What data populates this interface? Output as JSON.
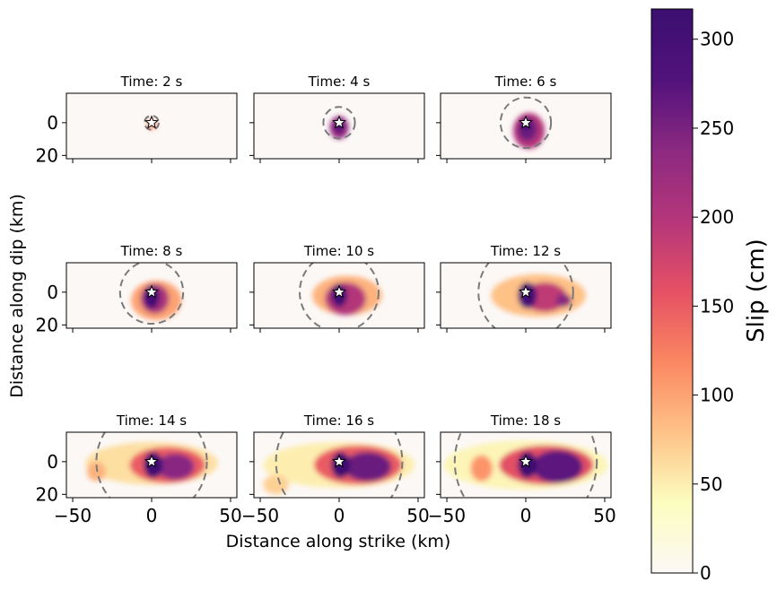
{
  "chart_data": {
    "type": "heatmap",
    "xlabel": "Distance along strike (km)",
    "ylabel": "Distance along dip (km)",
    "x_ticks": [
      -50,
      0,
      50
    ],
    "x_tick_labels": [
      "−50",
      "0",
      "50"
    ],
    "y_ticks": [
      0,
      20
    ],
    "y_tick_labels": [
      "0",
      "20"
    ],
    "xlim": [
      -54,
      54
    ],
    "ylim": [
      22,
      -18
    ],
    "hypocenter": {
      "x": 0,
      "y": 0
    },
    "colorbar": {
      "label": "Slip (cm)",
      "ticks": [
        0,
        50,
        100,
        150,
        200,
        250,
        300
      ],
      "range": [
        0,
        317
      ],
      "colormap": "magma_r",
      "stops": [
        "#fcf8f6",
        "#fcfdbf",
        "#fec287",
        "#fb8761",
        "#e55064",
        "#b5367a",
        "#8c2981",
        "#51127c",
        "#3b0f70"
      ]
    },
    "panels": [
      {
        "title": "Time: 2 s",
        "time_s": 2,
        "rupture_radius_km": 4.5
      },
      {
        "title": "Time: 4 s",
        "time_s": 4,
        "rupture_radius_km": 10
      },
      {
        "title": "Time: 6 s",
        "time_s": 6,
        "rupture_radius_km": 16
      },
      {
        "title": "Time: 8 s",
        "time_s": 8,
        "rupture_radius_km": 20
      },
      {
        "title": "Time: 10 s",
        "time_s": 10,
        "rupture_radius_km": 25
      },
      {
        "title": "Time: 12 s",
        "time_s": 12,
        "rupture_radius_km": 30
      },
      {
        "title": "Time: 14 s",
        "time_s": 14,
        "rupture_radius_km": 35
      },
      {
        "title": "Time: 16 s",
        "time_s": 16,
        "rupture_radius_km": 40
      },
      {
        "title": "Time: 18 s",
        "time_s": 18,
        "rupture_radius_km": 45
      }
    ],
    "slip_patches": [
      [
        {
          "x": 0,
          "y": 1,
          "rx": 3,
          "ry": 3,
          "slip": 120
        }
      ],
      [
        {
          "x": 0,
          "y": 3,
          "rx": 6,
          "ry": 7,
          "slip": 230
        },
        {
          "x": 0,
          "y": 2,
          "rx": 3,
          "ry": 4,
          "slip": 300
        }
      ],
      [
        {
          "x": 2,
          "y": 5,
          "rx": 10,
          "ry": 11,
          "slip": 200
        },
        {
          "x": 1,
          "y": 4,
          "rx": 6,
          "ry": 7,
          "slip": 260
        },
        {
          "x": 0,
          "y": 1,
          "rx": 3,
          "ry": 4,
          "slip": 310
        }
      ],
      [
        {
          "x": 3,
          "y": 5,
          "rx": 16,
          "ry": 12,
          "slip": 100
        },
        {
          "x": 2,
          "y": 4,
          "rx": 9,
          "ry": 9,
          "slip": 210
        },
        {
          "x": 0,
          "y": 3,
          "rx": 5,
          "ry": 7,
          "slip": 300
        }
      ],
      [
        {
          "x": 5,
          "y": 2,
          "rx": 22,
          "ry": 12,
          "slip": 90
        },
        {
          "x": 4,
          "y": 4,
          "rx": 13,
          "ry": 10,
          "slip": 200
        },
        {
          "x": 0,
          "y": 2,
          "rx": 5,
          "ry": 7,
          "slip": 310
        }
      ],
      [
        {
          "x": 8,
          "y": 2,
          "rx": 30,
          "ry": 13,
          "slip": 80
        },
        {
          "x": 12,
          "y": 3,
          "rx": 14,
          "ry": 9,
          "slip": 190
        },
        {
          "x": 1,
          "y": 2,
          "rx": 6,
          "ry": 8,
          "slip": 300
        },
        {
          "x": 24,
          "y": 5,
          "rx": 5,
          "ry": 4,
          "slip": 240
        }
      ],
      [
        {
          "x": 0,
          "y": 1,
          "rx": 42,
          "ry": 13,
          "slip": 60
        },
        {
          "x": 10,
          "y": 2,
          "rx": 24,
          "ry": 11,
          "slip": 150
        },
        {
          "x": 15,
          "y": 3,
          "rx": 12,
          "ry": 8,
          "slip": 240
        },
        {
          "x": 1,
          "y": 2,
          "rx": 6,
          "ry": 8,
          "slip": 310
        },
        {
          "x": -35,
          "y": 6,
          "rx": 6,
          "ry": 6,
          "slip": 90
        }
      ],
      [
        {
          "x": 0,
          "y": 2,
          "rx": 48,
          "ry": 14,
          "slip": 50
        },
        {
          "x": 12,
          "y": 2,
          "rx": 28,
          "ry": 12,
          "slip": 150
        },
        {
          "x": 18,
          "y": 3,
          "rx": 15,
          "ry": 9,
          "slip": 260
        },
        {
          "x": 1,
          "y": 2,
          "rx": 6,
          "ry": 8,
          "slip": 315
        },
        {
          "x": -40,
          "y": 14,
          "rx": 8,
          "ry": 6,
          "slip": 70
        }
      ],
      [
        {
          "x": 0,
          "y": 2,
          "rx": 52,
          "ry": 15,
          "slip": 45
        },
        {
          "x": 13,
          "y": 2,
          "rx": 30,
          "ry": 12,
          "slip": 160
        },
        {
          "x": 20,
          "y": 3,
          "rx": 16,
          "ry": 10,
          "slip": 270
        },
        {
          "x": 1,
          "y": 2,
          "rx": 6,
          "ry": 8,
          "slip": 315
        },
        {
          "x": -28,
          "y": 4,
          "rx": 7,
          "ry": 8,
          "slip": 110
        }
      ]
    ]
  }
}
